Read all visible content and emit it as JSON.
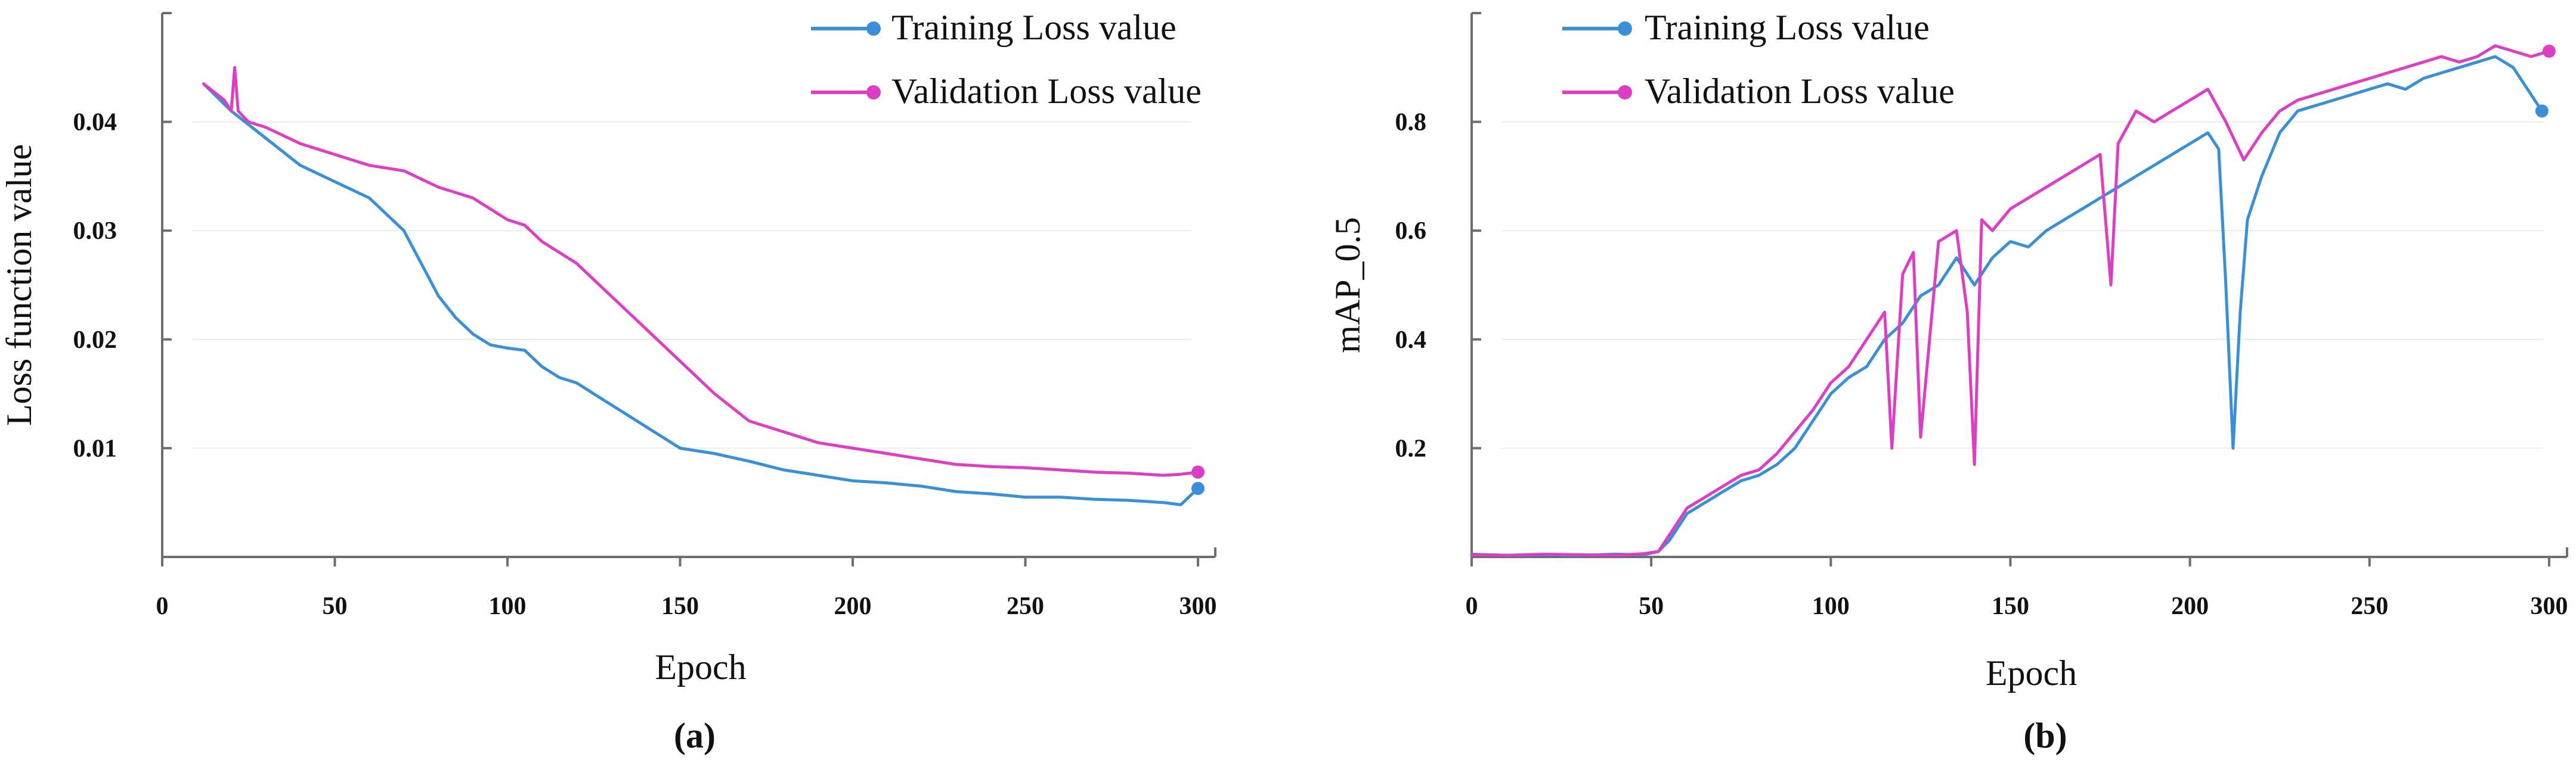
{
  "colors": {
    "training": "#3a8fd6",
    "validation": "#dd3fc4"
  },
  "chart_data": [
    {
      "type": "line",
      "panel_label": "(a)",
      "xlabel": "Epoch",
      "ylabel": "Loss function value",
      "xlim": [
        0,
        305
      ],
      "ylim": [
        0,
        0.05
      ],
      "xticks": [
        0,
        50,
        100,
        150,
        200,
        250,
        300
      ],
      "xtick_labels": [
        "0",
        "50",
        "100",
        "150",
        "200",
        "250",
        "300"
      ],
      "yticks": [
        0.01,
        0.02,
        0.03,
        0.04
      ],
      "ytick_labels": [
        "0.01",
        "0.02",
        "0.03",
        "0.04"
      ],
      "legend": [
        "Training Loss value",
        "Validation Loss value"
      ],
      "legend_position": "top-right",
      "series": [
        {
          "name": "Training Loss value",
          "x": [
            12,
            20,
            30,
            40,
            50,
            60,
            70,
            75,
            80,
            85,
            90,
            95,
            100,
            105,
            110,
            115,
            120,
            130,
            140,
            150,
            160,
            170,
            180,
            190,
            200,
            210,
            220,
            230,
            240,
            250,
            260,
            270,
            280,
            290,
            295,
            300
          ],
          "values": [
            0.0435,
            0.041,
            0.0385,
            0.036,
            0.0345,
            0.033,
            0.03,
            0.027,
            0.024,
            0.022,
            0.0205,
            0.0195,
            0.0192,
            0.019,
            0.0175,
            0.0165,
            0.016,
            0.014,
            0.012,
            0.01,
            0.0095,
            0.0088,
            0.008,
            0.0075,
            0.007,
            0.0068,
            0.0065,
            0.006,
            0.0058,
            0.0055,
            0.0055,
            0.0053,
            0.0052,
            0.005,
            0.0048,
            0.0063
          ]
        },
        {
          "name": "Validation Loss value",
          "x": [
            12,
            18,
            20,
            21,
            22,
            25,
            30,
            40,
            50,
            60,
            70,
            80,
            90,
            100,
            105,
            110,
            120,
            130,
            140,
            150,
            160,
            170,
            180,
            190,
            200,
            210,
            220,
            230,
            240,
            250,
            260,
            270,
            280,
            290,
            295,
            300
          ],
          "values": [
            0.0435,
            0.042,
            0.041,
            0.045,
            0.041,
            0.04,
            0.0395,
            0.038,
            0.037,
            0.036,
            0.0355,
            0.034,
            0.033,
            0.031,
            0.0305,
            0.029,
            0.027,
            0.024,
            0.021,
            0.018,
            0.015,
            0.0125,
            0.0115,
            0.0105,
            0.01,
            0.0095,
            0.009,
            0.0085,
            0.0083,
            0.0082,
            0.008,
            0.0078,
            0.0077,
            0.0075,
            0.0076,
            0.0078
          ]
        }
      ]
    },
    {
      "type": "line",
      "panel_label": "(b)",
      "xlabel": "Epoch",
      "ylabel": "mAP_0.5",
      "xlim": [
        0,
        305
      ],
      "ylim": [
        0,
        1.0
      ],
      "xticks": [
        0,
        50,
        100,
        150,
        200,
        250,
        300
      ],
      "xtick_labels": [
        "0",
        "50",
        "100",
        "150",
        "200",
        "250",
        "300"
      ],
      "yticks": [
        0.2,
        0.4,
        0.6,
        0.8
      ],
      "ytick_labels": [
        "0.2",
        "0.4",
        "0.6",
        "0.8"
      ],
      "legend": [
        "Training Loss value",
        "Validation Loss value"
      ],
      "legend_position": "top-left",
      "series": [
        {
          "name": "Training Loss value",
          "x": [
            0,
            10,
            20,
            30,
            40,
            48,
            52,
            55,
            60,
            65,
            70,
            75,
            80,
            85,
            90,
            95,
            100,
            105,
            110,
            115,
            120,
            125,
            130,
            135,
            140,
            145,
            150,
            155,
            160,
            165,
            170,
            175,
            180,
            185,
            190,
            195,
            200,
            205,
            208,
            210,
            212,
            214,
            216,
            220,
            225,
            230,
            235,
            240,
            245,
            250,
            255,
            260,
            265,
            270,
            275,
            280,
            285,
            290,
            295,
            298
          ],
          "values": [
            0.005,
            0.003,
            0.004,
            0.003,
            0.005,
            0.004,
            0.01,
            0.03,
            0.08,
            0.1,
            0.12,
            0.14,
            0.15,
            0.17,
            0.2,
            0.25,
            0.3,
            0.33,
            0.35,
            0.4,
            0.43,
            0.48,
            0.5,
            0.55,
            0.5,
            0.55,
            0.58,
            0.57,
            0.6,
            0.62,
            0.64,
            0.66,
            0.68,
            0.7,
            0.72,
            0.74,
            0.76,
            0.78,
            0.75,
            0.5,
            0.2,
            0.45,
            0.62,
            0.7,
            0.78,
            0.82,
            0.83,
            0.84,
            0.85,
            0.86,
            0.87,
            0.86,
            0.88,
            0.89,
            0.9,
            0.91,
            0.92,
            0.9,
            0.85,
            0.82
          ]
        },
        {
          "name": "Validation Loss value",
          "x": [
            0,
            10,
            20,
            30,
            40,
            48,
            52,
            55,
            60,
            65,
            70,
            75,
            80,
            85,
            90,
            95,
            100,
            105,
            110,
            115,
            117,
            120,
            123,
            125,
            130,
            135,
            138,
            140,
            142,
            145,
            150,
            155,
            160,
            165,
            170,
            175,
            178,
            180,
            185,
            190,
            195,
            200,
            205,
            210,
            215,
            220,
            225,
            230,
            235,
            240,
            245,
            250,
            255,
            260,
            265,
            270,
            275,
            280,
            285,
            290,
            295,
            300
          ],
          "values": [
            0.004,
            0.003,
            0.005,
            0.004,
            0.003,
            0.006,
            0.01,
            0.04,
            0.09,
            0.11,
            0.13,
            0.15,
            0.16,
            0.19,
            0.23,
            0.27,
            0.32,
            0.35,
            0.4,
            0.45,
            0.2,
            0.52,
            0.56,
            0.22,
            0.58,
            0.6,
            0.45,
            0.17,
            0.62,
            0.6,
            0.64,
            0.66,
            0.68,
            0.7,
            0.72,
            0.74,
            0.5,
            0.76,
            0.82,
            0.8,
            0.82,
            0.84,
            0.86,
            0.8,
            0.73,
            0.78,
            0.82,
            0.84,
            0.85,
            0.86,
            0.87,
            0.88,
            0.89,
            0.9,
            0.91,
            0.92,
            0.91,
            0.92,
            0.94,
            0.93,
            0.92,
            0.93
          ]
        }
      ]
    }
  ]
}
